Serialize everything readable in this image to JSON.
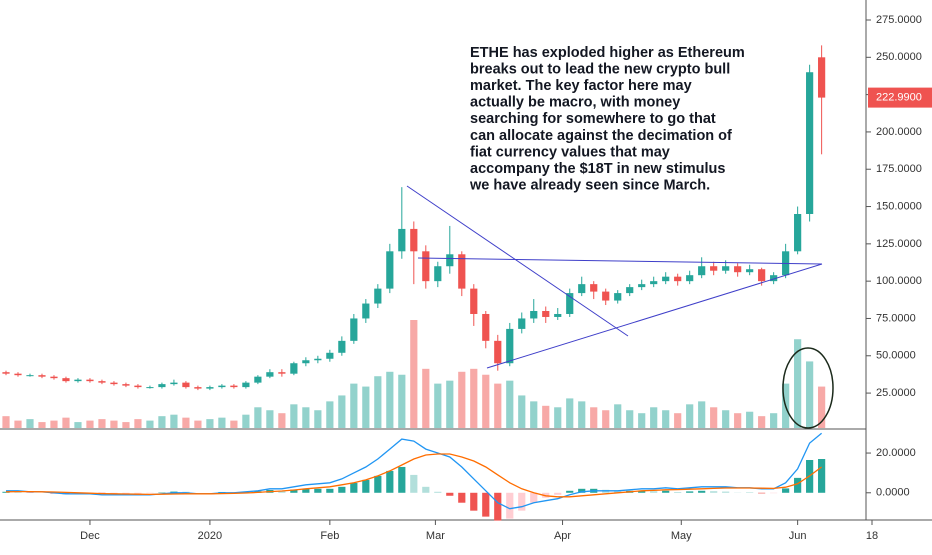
{
  "chart_data": {
    "type": "candlestick",
    "ohlc": [
      [
        39,
        40,
        37,
        38
      ],
      [
        38,
        39,
        36,
        37
      ],
      [
        37,
        38,
        36,
        37
      ],
      [
        37,
        38,
        35,
        36
      ],
      [
        36,
        37,
        34,
        35
      ],
      [
        35,
        36,
        32,
        33
      ],
      [
        33,
        35,
        32,
        34
      ],
      [
        34,
        35,
        32,
        33
      ],
      [
        33,
        34,
        31,
        32
      ],
      [
        32,
        33,
        30,
        31
      ],
      [
        31,
        32,
        29,
        30
      ],
      [
        30,
        31,
        28,
        29
      ],
      [
        29,
        30,
        28,
        29
      ],
      [
        29,
        32,
        28,
        31
      ],
      [
        31,
        34,
        30,
        32
      ],
      [
        32,
        33,
        28,
        29
      ],
      [
        29,
        30,
        27,
        28
      ],
      [
        28,
        30,
        27,
        29
      ],
      [
        29,
        31,
        28,
        30
      ],
      [
        30,
        31,
        28,
        29
      ],
      [
        29,
        33,
        28,
        32
      ],
      [
        32,
        37,
        31,
        36
      ],
      [
        36,
        41,
        35,
        39
      ],
      [
        39,
        41,
        36,
        38
      ],
      [
        38,
        46,
        37,
        45
      ],
      [
        45,
        49,
        43,
        47
      ],
      [
        47,
        50,
        45,
        48
      ],
      [
        48,
        54,
        46,
        52
      ],
      [
        52,
        63,
        50,
        60
      ],
      [
        60,
        78,
        58,
        75
      ],
      [
        75,
        88,
        72,
        85
      ],
      [
        85,
        98,
        82,
        95
      ],
      [
        95,
        125,
        92,
        120
      ],
      [
        120,
        163,
        115,
        135
      ],
      [
        135,
        140,
        98,
        120
      ],
      [
        120,
        124,
        95,
        100
      ],
      [
        100,
        113,
        96,
        110
      ],
      [
        110,
        137,
        105,
        118
      ],
      [
        118,
        120,
        90,
        95
      ],
      [
        95,
        98,
        70,
        78
      ],
      [
        78,
        80,
        55,
        60
      ],
      [
        60,
        64,
        40,
        45
      ],
      [
        45,
        72,
        43,
        68
      ],
      [
        68,
        79,
        65,
        75
      ],
      [
        75,
        88,
        72,
        80
      ],
      [
        80,
        83,
        72,
        76
      ],
      [
        76,
        82,
        74,
        78
      ],
      [
        78,
        95,
        76,
        92
      ],
      [
        92,
        103,
        90,
        98
      ],
      [
        98,
        100,
        88,
        93
      ],
      [
        93,
        95,
        84,
        87
      ],
      [
        87,
        94,
        85,
        92
      ],
      [
        92,
        98,
        90,
        96
      ],
      [
        96,
        101,
        94,
        98
      ],
      [
        98,
        103,
        96,
        100
      ],
      [
        100,
        106,
        98,
        103
      ],
      [
        103,
        105,
        97,
        100
      ],
      [
        100,
        107,
        98,
        104
      ],
      [
        104,
        116,
        102,
        110
      ],
      [
        110,
        113,
        104,
        107
      ],
      [
        107,
        114,
        105,
        110
      ],
      [
        110,
        112,
        103,
        106
      ],
      [
        106,
        111,
        104,
        108
      ],
      [
        108,
        109,
        97,
        100
      ],
      [
        100,
        106,
        98,
        104
      ],
      [
        104,
        125,
        102,
        120
      ],
      [
        120,
        150,
        118,
        145
      ],
      [
        145,
        245,
        140,
        240
      ],
      [
        250,
        258,
        185,
        223
      ]
    ],
    "volume": [
      8,
      5,
      6,
      4,
      5,
      7,
      4,
      5,
      6,
      5,
      4,
      6,
      5,
      8,
      9,
      7,
      5,
      6,
      7,
      5,
      9,
      14,
      12,
      10,
      16,
      14,
      12,
      18,
      22,
      30,
      28,
      35,
      38,
      36,
      73,
      40,
      30,
      32,
      38,
      40,
      36,
      30,
      32,
      22,
      18,
      15,
      14,
      20,
      18,
      14,
      12,
      16,
      12,
      10,
      14,
      12,
      10,
      16,
      18,
      14,
      12,
      10,
      11,
      8,
      10,
      30,
      60,
      45,
      28
    ],
    "ylim": [
      1.6,
      288.4
    ],
    "yticks": [
      {
        "value": 25,
        "label": "25.0000"
      },
      {
        "value": 50,
        "label": "50.0000"
      },
      {
        "value": 75,
        "label": "75.0000"
      },
      {
        "value": 100,
        "label": "100.0000"
      },
      {
        "value": 125,
        "label": "125.0000"
      },
      {
        "value": 150,
        "label": "150.0000"
      },
      {
        "value": 175,
        "label": "175.0000"
      },
      {
        "value": 200,
        "label": "200.0000"
      },
      {
        "value": 225,
        "label": "225.0000"
      },
      {
        "value": 250,
        "label": "250.0000"
      },
      {
        "value": 275,
        "label": "275.0000"
      }
    ],
    "xlim": [
      -0.5,
      71.7
    ],
    "xticks": [
      {
        "value": 7,
        "label": "Dec"
      },
      {
        "value": 17,
        "label": "2020"
      },
      {
        "value": 27,
        "label": "Feb"
      },
      {
        "value": 35.8,
        "label": "Mar"
      },
      {
        "value": 46.4,
        "label": "Apr"
      },
      {
        "value": 56.3,
        "label": "May"
      },
      {
        "value": 66,
        "label": "Jun"
      },
      {
        "value": 72.2,
        "label": "18"
      }
    ],
    "colors": {
      "up": "#26a69a",
      "down": "#ef5350"
    },
    "last_price": {
      "value": 222.99,
      "label": "222.9900"
    },
    "annotation": [
      "ETHE has exploded higher as Ethereum",
      "breaks out to lead the new crypto bull",
      "market. The key factor here may",
      "actually be macro, with money",
      "searching for somewhere to go that",
      "can allocate against the decimation of",
      "fiat currency values that may",
      "accompany the $18T in new stimulus",
      "we have already seen since March."
    ],
    "macd": {
      "macd": [
        1,
        1,
        0.5,
        0.5,
        0,
        -0.5,
        -0.5,
        -0.5,
        -1,
        -1,
        -1,
        -1,
        -1,
        -0.5,
        0,
        0,
        -0.5,
        -0.5,
        0,
        0,
        0.5,
        1,
        2,
        2,
        3,
        4,
        4.5,
        5,
        7,
        10,
        13,
        17,
        22,
        27,
        26,
        22,
        20,
        18,
        13,
        7,
        1,
        -5,
        -8,
        -7,
        -5,
        -4,
        -3,
        -1,
        0.5,
        1,
        1,
        1,
        1.5,
        2,
        2,
        2.5,
        2,
        2.5,
        3,
        3,
        3,
        2.5,
        2.5,
        2,
        2,
        5,
        12,
        25,
        30
      ],
      "signal": [
        0.5,
        0.6,
        0.6,
        0.5,
        0.4,
        0.2,
        0,
        -0.2,
        -0.4,
        -0.5,
        -0.6,
        -0.7,
        -0.8,
        -0.7,
        -0.6,
        -0.5,
        -0.5,
        -0.5,
        -0.4,
        -0.3,
        -0.1,
        0.2,
        0.6,
        0.9,
        1.4,
        2,
        2.5,
        3,
        4,
        5,
        6.5,
        8.5,
        11,
        14,
        17,
        19,
        19.5,
        19.5,
        18,
        16,
        13,
        9,
        5,
        2,
        0,
        -1.5,
        -2,
        -2,
        -1.5,
        -1,
        -0.5,
        0,
        0.5,
        1,
        1.2,
        1.5,
        1.6,
        1.8,
        2,
        2.2,
        2.4,
        2.4,
        2.4,
        2.3,
        2.2,
        2.8,
        4.5,
        8.5,
        13
      ],
      "histogram": [
        0.5,
        0.4,
        -0.1,
        0,
        -0.4,
        -0.7,
        -0.5,
        -0.3,
        -0.6,
        -0.5,
        -0.4,
        -0.3,
        -0.2,
        0.2,
        0.6,
        0.5,
        0,
        0,
        0.4,
        0.3,
        0.6,
        0.8,
        1.4,
        1.1,
        1.6,
        2,
        2,
        2,
        3,
        5,
        6.5,
        8.5,
        11,
        13,
        9,
        3,
        0.5,
        -1.5,
        -5,
        -9,
        -12,
        -14,
        -13,
        -9,
        -5,
        -2.5,
        -1,
        1,
        2,
        2,
        1.5,
        1,
        1,
        1,
        0.8,
        1,
        0.4,
        0.7,
        1,
        0.8,
        0.6,
        0.1,
        0.1,
        -0.3,
        -0.2,
        2.2,
        7.5,
        16.5,
        17
      ],
      "ylim": [
        -13.7,
        31.6
      ],
      "yticks": [
        {
          "value": 0,
          "label": "0.0000"
        },
        {
          "value": 20,
          "label": "20.0000"
        }
      ],
      "macd_color": "#2196f3",
      "signal_color": "#ff6d00"
    }
  }
}
